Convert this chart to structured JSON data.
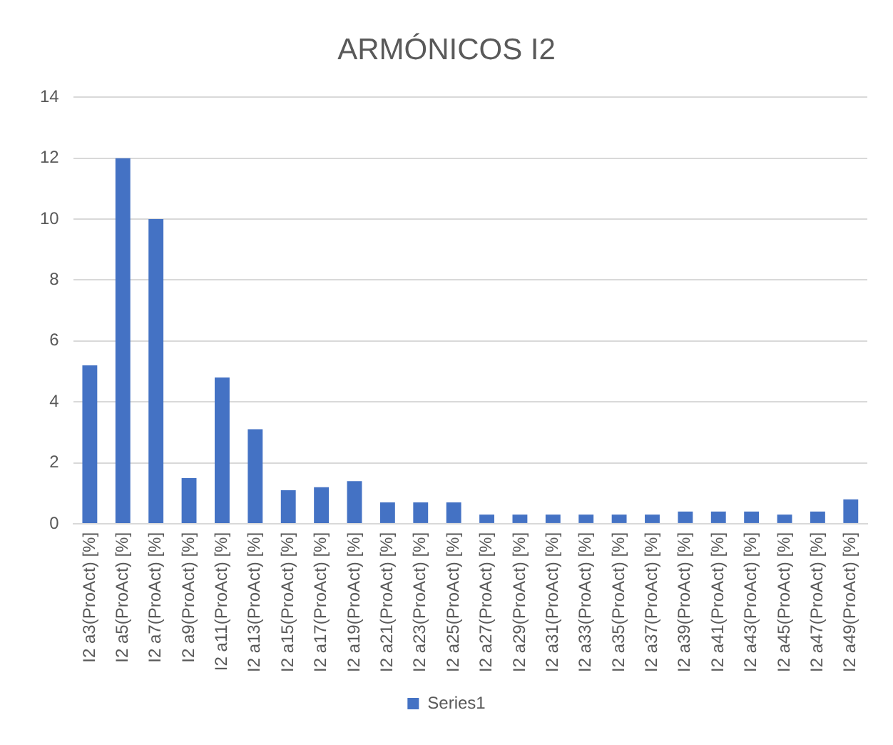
{
  "chart_data": {
    "type": "bar",
    "title": "ARMÓNICOS I2",
    "categories": [
      "I2 a3(ProAct) [%]",
      "I2 a5(ProAct) [%]",
      "I2 a7(ProAct) [%]",
      "I2 a9(ProAct) [%]",
      "I2 a11(ProAct) [%]",
      "I2 a13(ProAct) [%]",
      "I2 a15(ProAct) [%]",
      "I2 a17(ProAct) [%]",
      "I2 a19(ProAct) [%]",
      "I2 a21(ProAct) [%]",
      "I2 a23(ProAct) [%]",
      "I2 a25(ProAct) [%]",
      "I2 a27(ProAct) [%]",
      "I2 a29(ProAct) [%]",
      "I2 a31(ProAct) [%]",
      "I2 a33(ProAct) [%]",
      "I2 a35(ProAct) [%]",
      "I2 a37(ProAct) [%]",
      "I2 a39(ProAct) [%]",
      "I2 a41(ProAct) [%]",
      "I2 a43(ProAct) [%]",
      "I2 a45(ProAct) [%]",
      "I2 a47(ProAct) [%]",
      "I2 a49(ProAct) [%]"
    ],
    "series": [
      {
        "name": "Series1",
        "color": "#4472c4",
        "values": [
          5.2,
          12,
          10,
          1.5,
          4.8,
          3.1,
          1.1,
          1.2,
          1.4,
          0.7,
          0.7,
          0.7,
          0.3,
          0.3,
          0.3,
          0.3,
          0.3,
          0.3,
          0.4,
          0.4,
          0.4,
          0.3,
          0.4,
          0.8
        ]
      }
    ],
    "ylim": [
      0,
      14
    ],
    "yticks": [
      0,
      2,
      4,
      6,
      8,
      10,
      12,
      14
    ],
    "grid": "y",
    "legend": "bottom"
  }
}
